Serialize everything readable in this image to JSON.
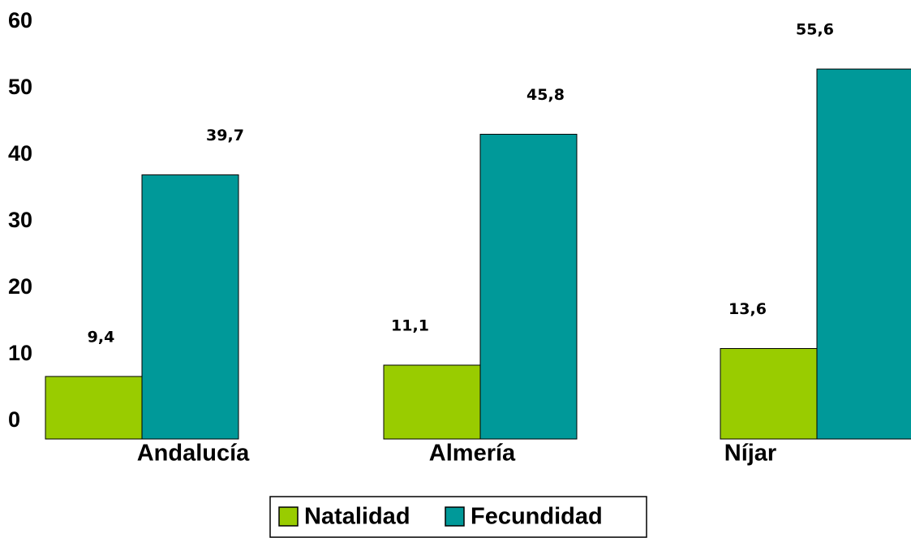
{
  "chart_data": {
    "type": "bar",
    "categories": [
      "Andalucía",
      "Almería",
      "Níjar"
    ],
    "series": [
      {
        "name": "Natalidad",
        "color": "#99cc00",
        "values": [
          9.4,
          11.1,
          13.6
        ],
        "value_labels": [
          "9,4",
          "11,1",
          "13,6"
        ]
      },
      {
        "name": "Fecundidad",
        "color": "#009999",
        "values": [
          39.7,
          45.8,
          55.6
        ],
        "value_labels": [
          "39,7",
          "45,8",
          "55,6"
        ]
      }
    ],
    "ylim": [
      0,
      60
    ],
    "yticks": [
      0,
      10,
      20,
      30,
      40,
      50,
      60
    ],
    "grid": false,
    "legend": "bottom"
  }
}
